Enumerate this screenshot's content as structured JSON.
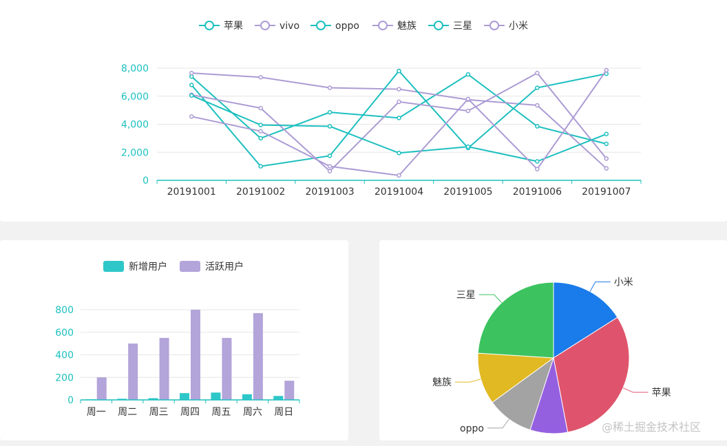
{
  "colors": {
    "teal": "#1cbfbf",
    "purple": "#ac9bd4",
    "axis": "#1cbfbf",
    "grid": "#e6e6e6",
    "text": "#333333"
  },
  "chart_data": [
    {
      "type": "line",
      "categories": [
        "20191001",
        "20191002",
        "20191003",
        "20191004",
        "20191005",
        "20191006",
        "20191007"
      ],
      "ylim": [
        0,
        8000
      ],
      "yticks": [
        "0",
        "2,000",
        "4,000",
        "6,000",
        "8,000"
      ],
      "legend_position": "top-center",
      "series": [
        {
          "name": "苹果",
          "color": "#1cbfbf",
          "values": [
            7400,
            3000,
            4850,
            4450,
            7550,
            3850,
            2600
          ]
        },
        {
          "name": "vivo",
          "color": "#ac9bd4",
          "values": [
            7650,
            7350,
            6600,
            6500,
            5750,
            5350,
            850
          ]
        },
        {
          "name": "oppo",
          "color": "#1cbfbf",
          "values": [
            6800,
            1000,
            1750,
            7800,
            2300,
            6600,
            7600
          ]
        },
        {
          "name": "魅族",
          "color": "#ac9bd4",
          "values": [
            6100,
            5150,
            650,
            5600,
            4950,
            7650,
            1550
          ]
        },
        {
          "name": "三星",
          "color": "#1cbfbf",
          "values": [
            6050,
            3950,
            3850,
            1950,
            2400,
            1350,
            3300
          ]
        },
        {
          "name": "小米",
          "color": "#ac9bd4",
          "values": [
            4550,
            3500,
            1000,
            350,
            5800,
            800,
            7850
          ]
        }
      ]
    },
    {
      "type": "bar",
      "categories": [
        "周一",
        "周二",
        "周三",
        "周四",
        "周五",
        "周六",
        "周日"
      ],
      "ylim": [
        0,
        800
      ],
      "yticks": [
        "0",
        "200",
        "400",
        "600",
        "800"
      ],
      "legend_position": "top-center",
      "series": [
        {
          "name": "新增用户",
          "color": "#2ec7c9",
          "values": [
            5,
            10,
            15,
            60,
            65,
            50,
            35
          ]
        },
        {
          "name": "活跃用户",
          "color": "#b3a4da",
          "values": [
            200,
            500,
            550,
            800,
            550,
            770,
            170
          ]
        }
      ]
    },
    {
      "type": "pie",
      "slices": [
        {
          "name": "小米",
          "value": 16,
          "color": "#1a7bea"
        },
        {
          "name": "苹果",
          "value": 31,
          "color": "#df546c"
        },
        {
          "name": "",
          "value": 8,
          "color": "#9560e0"
        },
        {
          "name": "oppo",
          "value": 10,
          "color": "#a3a3a3"
        },
        {
          "name": "魅族",
          "value": 11,
          "color": "#e1b923"
        },
        {
          "name": "三星",
          "value": 24,
          "color": "#3cc35f"
        }
      ]
    }
  ],
  "watermark": "@稀土掘金技术社区"
}
